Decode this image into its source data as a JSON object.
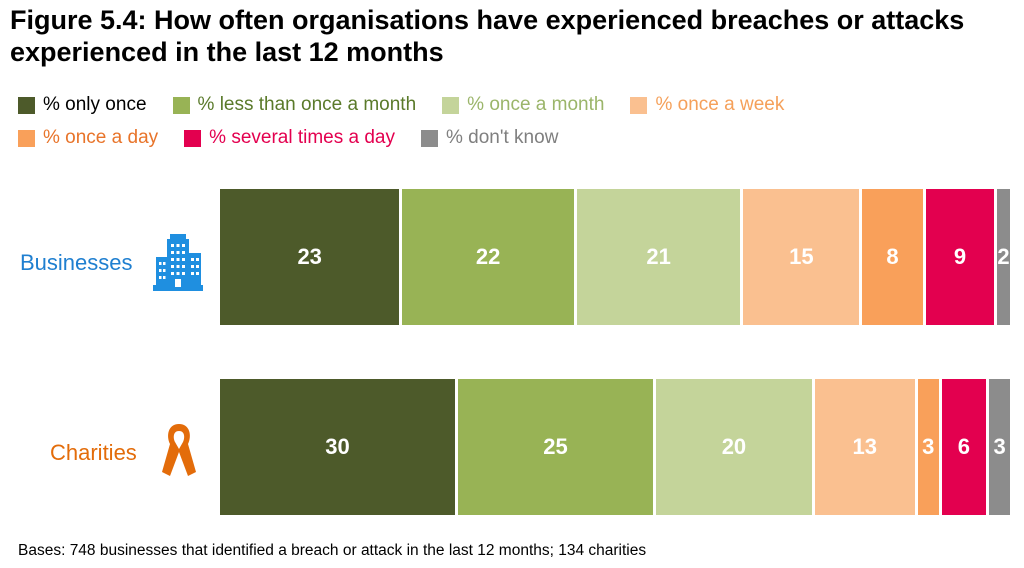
{
  "title": "Figure 5.4: How often organisations have experienced breaches or attacks experienced in the last 12 months",
  "legend": [
    {
      "label": "% only once",
      "color": "#4d5a2a",
      "text_color": "#000000"
    },
    {
      "label": "% less than once a month",
      "color": "#98b355",
      "text_color": "#5a7a2a"
    },
    {
      "label": "% once a month",
      "color": "#c4d49a",
      "text_color": "#9bb56a"
    },
    {
      "label": "% once a week",
      "color": "#fac090",
      "text_color": "#f5a05a"
    },
    {
      "label": "% once a day",
      "color": "#f9a05a",
      "text_color": "#e8742a"
    },
    {
      "label": "% several times a day",
      "color": "#e3004f",
      "text_color": "#e3004f"
    },
    {
      "label": "% don't know",
      "color": "#8c8c8c",
      "text_color": "#7f7f7f"
    }
  ],
  "chart_data": {
    "type": "bar",
    "orientation": "horizontal",
    "stacked": true,
    "title": "Figure 5.4: How often organisations have experienced breaches or attacks experienced in the last 12 months",
    "categories": [
      "Businesses",
      "Charities"
    ],
    "series": [
      {
        "name": "% only once",
        "values": [
          23,
          30
        ]
      },
      {
        "name": "% less than once a month",
        "values": [
          22,
          25
        ]
      },
      {
        "name": "% once a month",
        "values": [
          21,
          20
        ]
      },
      {
        "name": "% once a week",
        "values": [
          15,
          13
        ]
      },
      {
        "name": "% once a day",
        "values": [
          8,
          3
        ]
      },
      {
        "name": "% several times a day",
        "values": [
          9,
          6
        ]
      },
      {
        "name": "% don't know",
        "values": [
          2,
          3
        ]
      }
    ],
    "xlabel": "",
    "ylabel": "",
    "grid": false,
    "legend_position": "top-left"
  },
  "categories_style": {
    "Businesses": {
      "color": "#1f7fd0",
      "icon": "office-building-icon"
    },
    "Charities": {
      "color": "#e36c0a",
      "icon": "awareness-ribbon-icon"
    }
  },
  "footnote": "Bases: 748 businesses that identified a breach or attack in the last 12 months; 134 charities"
}
